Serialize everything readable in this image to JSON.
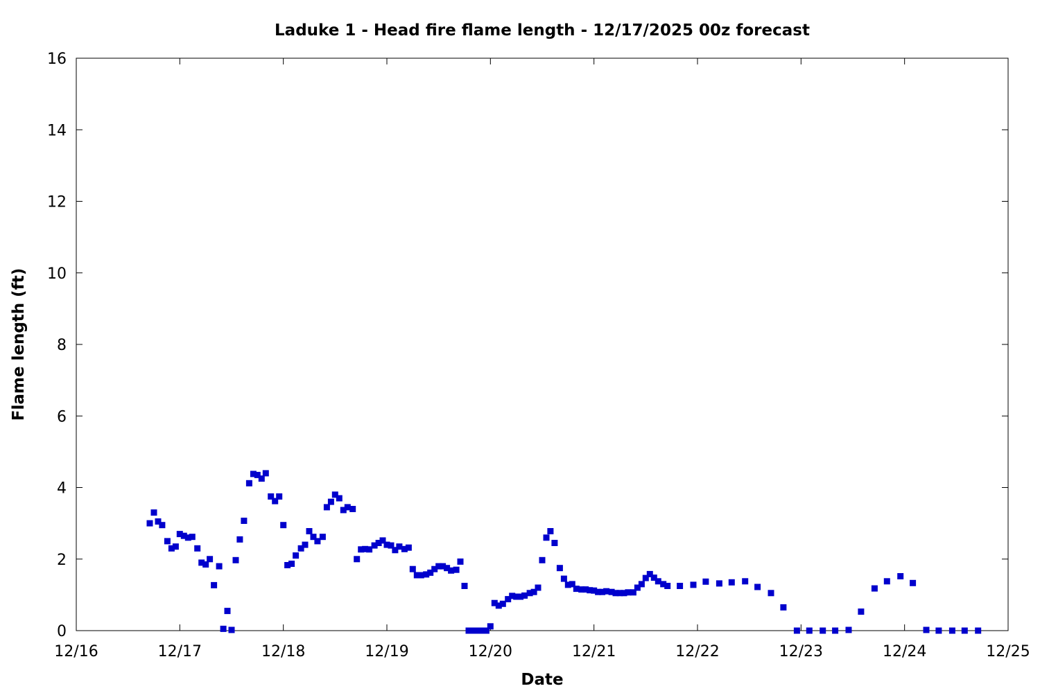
{
  "chart_data": {
    "type": "scatter",
    "title": "Laduke 1 - Head fire flame length - 12/17/2025 00z forecast",
    "xlabel": "Date",
    "ylabel": "Flame length (ft)",
    "x_tick_labels": [
      "12/16",
      "12/17",
      "12/18",
      "12/19",
      "12/20",
      "12/21",
      "12/22",
      "12/23",
      "12/24",
      "12/25"
    ],
    "x_unit": "days since 12/16",
    "xlim": [
      0,
      9
    ],
    "ylim": [
      0,
      16
    ],
    "y_ticks": [
      0,
      2,
      4,
      6,
      8,
      10,
      12,
      14,
      16
    ],
    "grid": false,
    "marker_color": "#0000cc",
    "series": [
      {
        "x": [
          0.71,
          0.75,
          0.79,
          0.83,
          0.88,
          0.92,
          0.96,
          1.0,
          1.04,
          1.08,
          1.12,
          1.17,
          1.21,
          1.25,
          1.29,
          1.33,
          1.38,
          1.42,
          1.46,
          1.5,
          1.54,
          1.58,
          1.62,
          1.67,
          1.71,
          1.75,
          1.79,
          1.83,
          1.88,
          1.92,
          1.96,
          2.0,
          2.04,
          2.08,
          2.12,
          2.17,
          2.21,
          2.25,
          2.29,
          2.33,
          2.38,
          2.42,
          2.46,
          2.5,
          2.54,
          2.58,
          2.62,
          2.67,
          2.71,
          2.75,
          2.79,
          2.83,
          2.88,
          2.92,
          2.96,
          3.0,
          3.04,
          3.08,
          3.12,
          3.17,
          3.21,
          3.25,
          3.29,
          3.33,
          3.38,
          3.42,
          3.46,
          3.5,
          3.54,
          3.58,
          3.62,
          3.67,
          3.71,
          3.75,
          3.79,
          3.83,
          3.88,
          3.92,
          3.96,
          4.0,
          4.04,
          4.08,
          4.12,
          4.17,
          4.21,
          4.25,
          4.29,
          4.33,
          4.38,
          4.42,
          4.46,
          4.5,
          4.54,
          4.58,
          4.62,
          4.67,
          4.71,
          4.75,
          4.79,
          4.83,
          4.88,
          4.92,
          4.96,
          5.0,
          5.04,
          5.08,
          5.12,
          5.17,
          5.21,
          5.25,
          5.29,
          5.33,
          5.38,
          5.42,
          5.46,
          5.5,
          5.54,
          5.58,
          5.62,
          5.67,
          5.71,
          5.83,
          5.96,
          6.08,
          6.21,
          6.33,
          6.46,
          6.58,
          6.71,
          6.83,
          6.96,
          7.08,
          7.21,
          7.33,
          7.46,
          7.58,
          7.71,
          7.83,
          7.96,
          8.08,
          8.21,
          8.33,
          8.46,
          8.58,
          8.71
        ],
        "y": [
          3.0,
          3.3,
          3.05,
          2.95,
          2.5,
          2.3,
          2.35,
          2.7,
          2.65,
          2.6,
          2.62,
          2.3,
          1.9,
          1.85,
          2.0,
          1.27,
          1.8,
          0.05,
          0.55,
          0.02,
          1.97,
          2.55,
          3.07,
          4.12,
          4.38,
          4.35,
          4.25,
          4.4,
          3.75,
          3.62,
          3.75,
          2.95,
          1.83,
          1.87,
          2.1,
          2.3,
          2.4,
          2.78,
          2.62,
          2.5,
          2.62,
          3.45,
          3.6,
          3.8,
          3.7,
          3.37,
          3.45,
          3.4,
          2.0,
          2.27,
          2.28,
          2.27,
          2.38,
          2.45,
          2.52,
          2.4,
          2.38,
          2.25,
          2.35,
          2.28,
          2.32,
          1.72,
          1.55,
          1.55,
          1.57,
          1.62,
          1.72,
          1.8,
          1.8,
          1.75,
          1.68,
          1.7,
          1.93,
          1.25,
          0.0,
          0.0,
          0.0,
          0.0,
          0.0,
          0.12,
          0.77,
          0.7,
          0.75,
          0.88,
          0.97,
          0.95,
          0.95,
          0.98,
          1.05,
          1.08,
          1.2,
          1.97,
          2.6,
          2.78,
          2.45,
          1.75,
          1.45,
          1.28,
          1.3,
          1.17,
          1.15,
          1.15,
          1.13,
          1.12,
          1.08,
          1.08,
          1.1,
          1.08,
          1.05,
          1.05,
          1.05,
          1.07,
          1.07,
          1.2,
          1.3,
          1.47,
          1.58,
          1.48,
          1.38,
          1.3,
          1.25,
          1.25,
          1.28,
          1.37,
          1.32,
          1.35,
          1.38,
          1.22,
          1.05,
          0.65,
          0.0,
          0.0,
          0.0,
          0.0,
          0.02,
          0.53,
          1.18,
          1.38,
          1.52,
          1.33,
          0.02,
          0.0,
          0.0,
          0.0,
          0.0
        ]
      }
    ]
  }
}
